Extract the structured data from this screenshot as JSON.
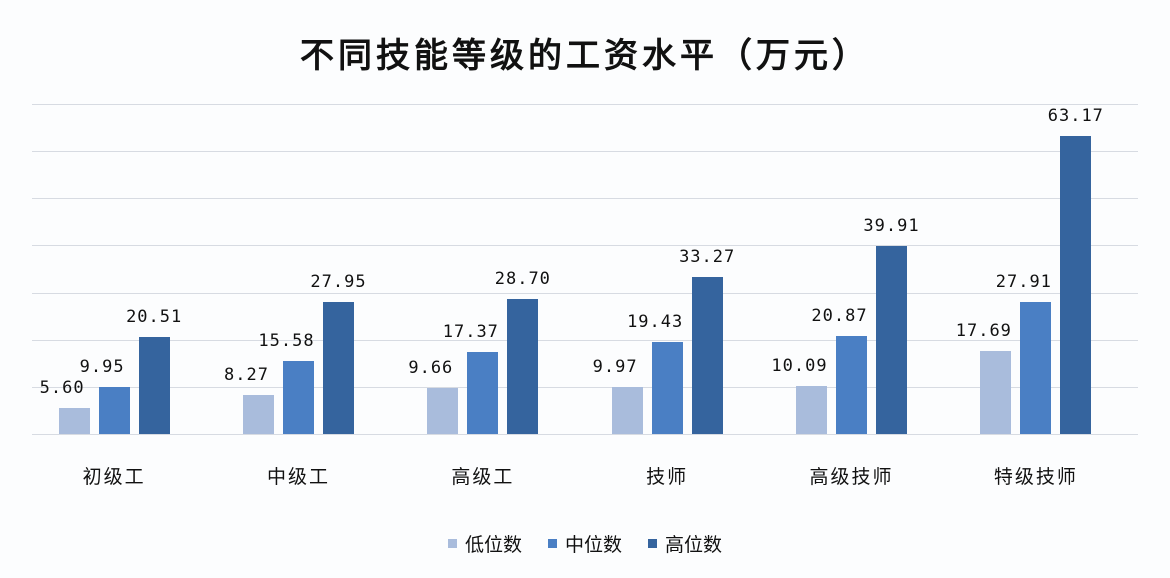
{
  "chart_data": {
    "type": "bar",
    "title": "不同技能等级的工资水平（万元）",
    "xlabel": "",
    "ylabel": "",
    "ylim": [
      0,
      70
    ],
    "grid": true,
    "legend_position": "bottom",
    "categories": [
      "初级工",
      "中级工",
      "高级工",
      "技师",
      "高级技师",
      "特级技师"
    ],
    "series": [
      {
        "name": "低位数",
        "color": "#a9bcdc",
        "values": [
          5.6,
          8.27,
          9.66,
          9.97,
          10.09,
          17.69
        ],
        "labels": [
          "5.60",
          "8.27",
          "9.66",
          "9.97",
          "10.09",
          "17.69"
        ]
      },
      {
        "name": "中位数",
        "color": "#4a7fc4",
        "values": [
          9.95,
          15.58,
          17.37,
          19.43,
          20.87,
          27.91
        ],
        "labels": [
          "9.95",
          "15.58",
          "17.37",
          "19.43",
          "20.87",
          "27.91"
        ]
      },
      {
        "name": "高位数",
        "color": "#35649e",
        "values": [
          20.51,
          27.95,
          28.7,
          33.27,
          39.91,
          63.17
        ],
        "labels": [
          "20.51",
          "27.95",
          "28.70",
          "33.27",
          "39.91",
          "63.17"
        ]
      }
    ]
  }
}
